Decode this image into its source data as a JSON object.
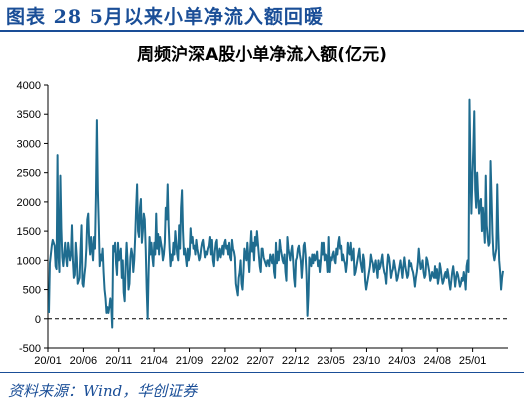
{
  "figure": {
    "label": "图表 28   5月以来小单净流入额回暖",
    "source": "资料来源：Wind，华创证券"
  },
  "chart_data": {
    "type": "line",
    "title": "周频沪深A股小单净流入额(亿元)",
    "xlabel": "",
    "ylabel": "",
    "ylim": [
      -500,
      4000
    ],
    "yticks": [
      -500,
      0,
      500,
      1000,
      1500,
      2000,
      2500,
      3000,
      3500,
      4000
    ],
    "xticks": [
      "20/01",
      "20/06",
      "20/11",
      "21/04",
      "21/09",
      "22/02",
      "22/07",
      "22/12",
      "23/05",
      "23/10",
      "24/03",
      "24/08",
      "25/01"
    ],
    "grid": false,
    "legend": "none",
    "reference_line": 0,
    "line_color": "#1f6c8f",
    "series": [
      {
        "values": [
          100,
          950,
          1100,
          1250,
          1350,
          1300,
          1250,
          900,
          850,
          2800,
          1100,
          800,
          2450,
          1550,
          1050,
          900,
          1100,
          1300,
          1050,
          900,
          1300,
          1150,
          1000,
          1100,
          1600,
          1000,
          700,
          750,
          1300,
          1050,
          600,
          650,
          700,
          1200,
          1600,
          600,
          550,
          750,
          900,
          1200,
          1700,
          1800,
          1300,
          1100,
          1400,
          1200,
          1000,
          1400,
          1200,
          2100,
          3400,
          2200,
          1600,
          900,
          1100,
          1000,
          1200,
          800,
          500,
          350,
          100,
          200,
          100,
          200,
          350,
          200,
          -150,
          1250,
          1150,
          1300,
          950,
          750,
          1300,
          1000,
          1100,
          1200,
          700,
          1000,
          450,
          300,
          900,
          1300,
          1000,
          500,
          600,
          1050,
          1200,
          1100,
          800,
          1000,
          1400,
          1900,
          2300,
          1500,
          1400,
          1900,
          2050,
          1300,
          1500,
          1800,
          1700,
          1200,
          500,
          0,
          800,
          1400,
          1100,
          1300,
          1050,
          900,
          1300,
          1100,
          1800,
          1200,
          1450,
          1100,
          1400,
          1300,
          1200,
          1000,
          1100,
          1300,
          1900,
          1700,
          2300,
          1600,
          1200,
          900,
          1100,
          1000,
          1300,
          1100,
          1500,
          1300,
          1100,
          1000,
          1600,
          1200,
          1900,
          2200,
          1500,
          1100,
          1200,
          1050,
          900,
          1200,
          1000,
          1100,
          1550,
          1300,
          1400,
          1200,
          1250,
          1100,
          1350,
          1200,
          1100,
          1000,
          1050,
          1200,
          1300,
          1350,
          1200,
          1050,
          1150,
          1100,
          1200,
          1250,
          1400,
          1100,
          1350,
          1000,
          900,
          1150,
          1300,
          1350,
          1000,
          1100,
          1200,
          1050,
          1150,
          1250,
          1100,
          1300,
          1350,
          1200,
          1250,
          1100,
          1300,
          1050,
          1000,
          1350,
          1200,
          1150,
          1050,
          600,
          500,
          400,
          700,
          800,
          1000,
          600,
          500,
          800,
          1200,
          1100,
          1000,
          1300,
          1050,
          800,
          1200,
          1500,
          1150,
          1300,
          1000,
          1400,
          1250,
          1500,
          1300,
          1100,
          900,
          800,
          1200,
          1200,
          1050,
          1000,
          950,
          900,
          1000,
          1000,
          900,
          1100,
          1050,
          950,
          1100,
          800,
          700,
          1300,
          950,
          1150,
          1000,
          1350,
          1200,
          1100,
          1000,
          950,
          1100,
          800,
          650,
          1400,
          1200,
          1100,
          1000,
          1150,
          1250,
          1000,
          700,
          550,
          1000,
          1050,
          1200,
          1250,
          1100,
          1000,
          700,
          950,
          1250,
          1300,
          1100,
          750,
          50,
          400,
          1050,
          1000,
          900,
          1100,
          950,
          1100,
          1000,
          1050,
          1150,
          900,
          1000,
          800,
          1000,
          1300,
          1100,
          1300,
          1000,
          1100,
          1050,
          800,
          1400,
          800,
          1050,
          1000,
          1100,
          1150,
          1000,
          950,
          1200,
          1100,
          1300,
          1400,
          1200,
          1250,
          1000,
          1100,
          1000,
          950,
          800,
          950,
          1300,
          1150,
          1100,
          1300,
          1000,
          1100,
          1200,
          750,
          800,
          900,
          1000,
          1100,
          1200,
          1000,
          900,
          800,
          1100,
          1000,
          650,
          500,
          600,
          700,
          800,
          900,
          1100,
          1000,
          950,
          800,
          900,
          1000,
          850,
          700,
          1000,
          850,
          900,
          1000,
          1100,
          900,
          800,
          750,
          600,
          900,
          1100,
          1050,
          900,
          700,
          800,
          850,
          1000,
          900,
          800,
          650,
          700,
          800,
          900,
          1000,
          850,
          700,
          900,
          1050,
          900,
          800,
          700,
          750,
          1000,
          900,
          950,
          850,
          800,
          700,
          550,
          700,
          800,
          950,
          1200,
          1000,
          850,
          900,
          1000,
          800,
          700,
          750,
          1050,
          1000,
          900,
          800,
          650,
          700,
          800,
          750,
          700,
          900,
          700,
          850,
          600,
          700,
          950,
          850,
          700,
          600,
          650,
          750,
          800,
          700,
          850,
          750,
          600,
          500,
          650,
          800,
          900,
          750,
          550,
          700,
          800,
          750,
          650,
          550,
          600,
          700,
          650,
          800,
          700,
          500,
          900,
          1000,
          800,
          3750,
          2600,
          1800,
          2400,
          2900,
          3550,
          2200,
          1900,
          2500,
          2100,
          1800,
          2000,
          2050,
          1500,
          1900,
          1600,
          1300,
          2450,
          1600,
          1400,
          1250,
          1300,
          2700,
          2100,
          1450,
          1100,
          1000,
          1100,
          1200,
          2300,
          1500,
          1000,
          800,
          500,
          700,
          820
        ]
      }
    ]
  }
}
